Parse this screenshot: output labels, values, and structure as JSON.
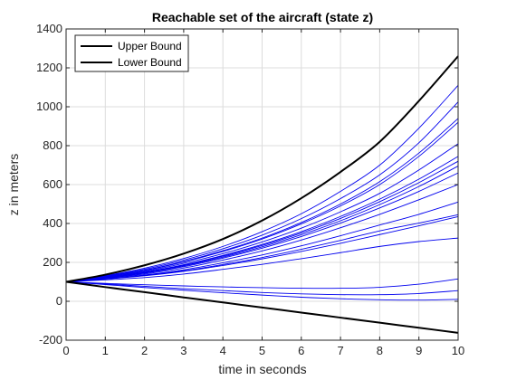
{
  "chart_data": {
    "type": "line",
    "title": "Reachable set of the aircraft (state z)",
    "xlabel": "time in seconds",
    "ylabel": "z in meters",
    "xlim": [
      0,
      10
    ],
    "ylim": [
      -200,
      1400
    ],
    "xticks": [
      0,
      1,
      2,
      3,
      4,
      5,
      6,
      7,
      8,
      9,
      10
    ],
    "yticks": [
      -200,
      0,
      200,
      400,
      600,
      800,
      1000,
      1200,
      1400
    ],
    "grid": true,
    "legend_position": "top-left",
    "series": [
      {
        "name": "Upper Bound",
        "color": "#000000",
        "line_width": "thick",
        "x": [
          0,
          1,
          2,
          3,
          4,
          5,
          6,
          7,
          8,
          9,
          10
        ],
        "y": [
          100,
          137,
          185,
          245,
          320,
          415,
          530,
          665,
          820,
          1030,
          1260
        ]
      },
      {
        "name": "Lower Bound",
        "color": "#000000",
        "line_width": "thick",
        "x": [
          0,
          1,
          2,
          3,
          4,
          5,
          6,
          7,
          8,
          9,
          10
        ],
        "y": [
          100,
          73,
          47,
          20,
          -6,
          -32,
          -58,
          -84,
          -110,
          -136,
          -162
        ]
      }
    ],
    "trajectories": {
      "color": "#0000ee",
      "x": [
        0,
        1,
        2,
        3,
        4,
        5,
        6,
        7,
        8,
        9,
        10
      ],
      "lines": [
        [
          100,
          132,
          170,
          220,
          282,
          358,
          450,
          565,
          700,
          890,
          1110
        ],
        [
          100,
          130,
          165,
          212,
          270,
          340,
          425,
          528,
          650,
          815,
          1025
        ],
        [
          100,
          128,
          160,
          205,
          260,
          325,
          405,
          500,
          615,
          762,
          940
        ],
        [
          100,
          127,
          158,
          202,
          256,
          320,
          398,
          490,
          600,
          745,
          920
        ],
        [
          100,
          125,
          154,
          195,
          245,
          305,
          376,
          460,
          555,
          675,
          810
        ],
        [
          100,
          123,
          150,
          188,
          236,
          292,
          358,
          436,
          525,
          628,
          745
        ],
        [
          100,
          122,
          148,
          185,
          232,
          287,
          351,
          426,
          512,
          610,
          720
        ],
        [
          100,
          121,
          146,
          182,
          227,
          280,
          342,
          414,
          497,
          590,
          695
        ],
        [
          100,
          120,
          144,
          178,
          222,
          273,
          333,
          402,
          480,
          565,
          660
        ],
        [
          100,
          118,
          140,
          171,
          212,
          259,
          315,
          378,
          447,
          522,
          600
        ],
        [
          100,
          116,
          135,
          162,
          198,
          238,
          285,
          337,
          392,
          447,
          510
        ],
        [
          100,
          115,
          133,
          157,
          189,
          225,
          267,
          313,
          362,
          402,
          445
        ],
        [
          100,
          114,
          131,
          154,
          184,
          218,
          256,
          298,
          343,
          388,
          435
        ],
        [
          100,
          110,
          122,
          140,
          164,
          190,
          219,
          250,
          282,
          307,
          325
        ],
        [
          100,
          92,
          85,
          79,
          74,
          70,
          67,
          67,
          72,
          88,
          115
        ],
        [
          100,
          89,
          77,
          65,
          55,
          45,
          38,
          34,
          34,
          40,
          55
        ],
        [
          100,
          86,
          71,
          57,
          44,
          32,
          21,
          13,
          8,
          6,
          10
        ]
      ]
    }
  }
}
